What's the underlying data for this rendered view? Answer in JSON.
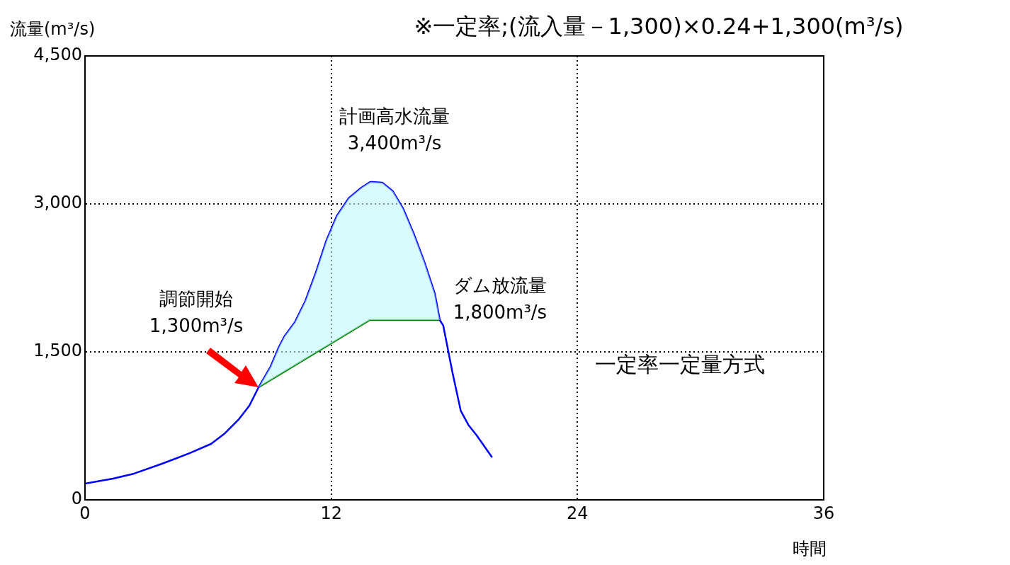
{
  "chart_data": {
    "type": "line",
    "title": "※一定率;(流入量－1,300)×0.24+1,300(m³/s)",
    "xlabel": "時間",
    "ylabel": "流量(m³/s)",
    "xlim": [
      0,
      36
    ],
    "xticks": [
      0,
      12,
      24,
      36
    ],
    "ylim": [
      0,
      4500
    ],
    "yticks": [
      {
        "value": 0,
        "label": "0"
      },
      {
        "value": 1500,
        "label": "1,500"
      },
      {
        "value": 3000,
        "label": "3,000"
      },
      {
        "value": 4500,
        "label": "4,500"
      }
    ],
    "grid": true,
    "legend": false,
    "marker": "none",
    "line_style": "solid",
    "series": [
      {
        "color": "#0000ff",
        "x": [
          0,
          1.36,
          2.39,
          3.75,
          5.11,
          6.14,
          6.82,
          7.5,
          8.01,
          8.46,
          9.04,
          9.45,
          9.72,
          10.23,
          10.74,
          11.25,
          11.76,
          12.27,
          12.85,
          13.47,
          13.88,
          13.98,
          14.49,
          15.0,
          15.51,
          16.02,
          16.54,
          17.05,
          17.29,
          17.46,
          17.9,
          18.31,
          18.68,
          19.09,
          19.84
        ],
        "values": [
          165,
          215,
          266,
          366,
          474,
          567,
          675,
          818,
          955,
          1141,
          1349,
          1550,
          1658,
          1801,
          2017,
          2304,
          2627,
          2878,
          3057,
          3165,
          3220,
          3223,
          3215,
          3129,
          2950,
          2699,
          2411,
          2089,
          1823,
          1766,
          1299,
          904,
          761,
          653,
          431
        ],
        "lower": [
          null,
          null,
          null,
          null,
          null,
          null,
          null,
          null,
          null,
          1141,
          1214,
          1266,
          1300,
          1364,
          1428,
          1492,
          1556,
          1620,
          1693,
          1771,
          1823,
          1823,
          1823,
          1823,
          1823,
          1823,
          1823,
          1823,
          1823,
          null,
          null,
          null,
          null,
          null,
          null
        ],
        "upper": [
          null,
          null,
          null,
          null,
          null,
          null,
          null,
          null,
          null,
          1141,
          1349,
          1550,
          1658,
          1801,
          2017,
          2304,
          2627,
          2878,
          3057,
          3165,
          3220,
          3223,
          3215,
          3129,
          2950,
          2699,
          2411,
          2089,
          1823,
          null,
          null,
          null,
          null,
          null,
          null
        ]
      },
      {
        "color": "#008000",
        "x": [
          8.46,
          13.88,
          17.29
        ],
        "values": [
          1141,
          1823,
          1823
        ]
      }
    ],
    "annotations": [
      {
        "text": "調節開始\n1,300m³/s",
        "x": 8.46,
        "y": 1141
      },
      {
        "text": "計画高水流量\n3,400m³/s",
        "x": 13.98,
        "y": 3223
      },
      {
        "text": "ダム放流量\n1,800m³/s",
        "x": 17.29,
        "y": 1823
      },
      "一定率一定量方式"
    ]
  }
}
